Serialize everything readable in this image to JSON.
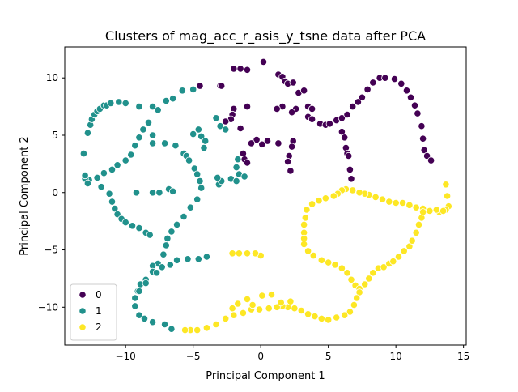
{
  "chart_data": {
    "type": "scatter",
    "title": "Clusters of mag_acc_r_asis_y_tsne data after PCA",
    "xlabel": "Principal Component 1",
    "ylabel": "Principal Component 2",
    "xlim": [
      -14.5,
      15.2
    ],
    "ylim": [
      -13.3,
      12.7
    ],
    "xticks": [
      -10,
      -5,
      0,
      5,
      10,
      15
    ],
    "yticks": [
      -10,
      -5,
      0,
      5,
      10
    ],
    "grid": false,
    "legend": {
      "placement": "lower-left",
      "entries": [
        "0",
        "1",
        "2"
      ]
    },
    "series": [
      {
        "name": "0",
        "color": "#440154",
        "points": [
          [
            -4.5,
            9.3
          ],
          [
            -3.0,
            9.3
          ],
          [
            -2.9,
            9.3
          ],
          [
            -2.0,
            10.8
          ],
          [
            -1.5,
            10.8
          ],
          [
            -1.0,
            10.7
          ],
          [
            0.2,
            11.4
          ],
          [
            1.3,
            10.3
          ],
          [
            1.6,
            10.1
          ],
          [
            1.8,
            9.7
          ],
          [
            2.0,
            9.5
          ],
          [
            2.4,
            9.6
          ],
          [
            2.8,
            8.7
          ],
          [
            3.2,
            8.9
          ],
          [
            3.5,
            7.5
          ],
          [
            2.6,
            7.3
          ],
          [
            2.3,
            7.0
          ],
          [
            1.6,
            7.5
          ],
          [
            1.2,
            7.3
          ],
          [
            -1.0,
            7.5
          ],
          [
            -2.0,
            7.3
          ],
          [
            -2.1,
            6.8
          ],
          [
            -2.2,
            6.4
          ],
          [
            -3.0,
            5.8
          ],
          [
            -2.6,
            6.2
          ],
          [
            -1.5,
            5.6
          ],
          [
            3.8,
            7.3
          ],
          [
            3.5,
            6.6
          ],
          [
            3.8,
            6.4
          ],
          [
            4.4,
            6.0
          ],
          [
            4.8,
            5.9
          ],
          [
            5.1,
            6.0
          ],
          [
            5.6,
            6.3
          ],
          [
            6.0,
            6.5
          ],
          [
            6.4,
            6.8
          ],
          [
            6.8,
            7.5
          ],
          [
            7.2,
            7.9
          ],
          [
            7.5,
            8.3
          ],
          [
            7.9,
            9.0
          ],
          [
            8.3,
            9.6
          ],
          [
            8.8,
            10.0
          ],
          [
            9.2,
            10.0
          ],
          [
            9.9,
            9.9
          ],
          [
            10.4,
            9.5
          ],
          [
            10.8,
            8.9
          ],
          [
            11.1,
            8.3
          ],
          [
            11.4,
            7.6
          ],
          [
            11.6,
            6.9
          ],
          [
            11.9,
            5.8
          ],
          [
            12.0,
            4.7
          ],
          [
            12.1,
            3.7
          ],
          [
            12.3,
            3.2
          ],
          [
            12.6,
            2.8
          ],
          [
            6.0,
            5.3
          ],
          [
            6.2,
            4.8
          ],
          [
            6.3,
            3.9
          ],
          [
            6.4,
            3.4
          ],
          [
            6.5,
            3.2
          ],
          [
            6.6,
            2.0
          ],
          [
            6.7,
            1.2
          ],
          [
            2.4,
            4.5
          ],
          [
            2.3,
            4.0
          ],
          [
            2.1,
            3.2
          ],
          [
            2.0,
            2.7
          ],
          [
            2.2,
            1.9
          ],
          [
            1.3,
            4.3
          ],
          [
            0.5,
            4.5
          ],
          [
            0.1,
            4.2
          ],
          [
            -0.3,
            4.6
          ],
          [
            -0.7,
            4.3
          ],
          [
            -1.3,
            3.4
          ],
          [
            -1.2,
            2.9
          ],
          [
            -1.0,
            2.6
          ]
        ]
      },
      {
        "name": "1",
        "color": "#21918c",
        "points": [
          [
            -12.8,
            5.2
          ],
          [
            -12.6,
            5.9
          ],
          [
            -12.5,
            6.4
          ],
          [
            -12.3,
            6.8
          ],
          [
            -12.1,
            7.1
          ],
          [
            -11.9,
            7.3
          ],
          [
            -11.6,
            7.6
          ],
          [
            -11.4,
            7.6
          ],
          [
            -11.1,
            7.8
          ],
          [
            -10.5,
            7.9
          ],
          [
            -10.0,
            7.8
          ],
          [
            -9.0,
            7.5
          ],
          [
            -8.0,
            7.5
          ],
          [
            -7.6,
            7.2
          ],
          [
            -7.0,
            8.0
          ],
          [
            -6.5,
            8.2
          ],
          [
            -5.8,
            8.9
          ],
          [
            -5.0,
            9.0
          ],
          [
            -8.3,
            6.1
          ],
          [
            -8.7,
            5.5
          ],
          [
            -9.0,
            4.8
          ],
          [
            -9.3,
            4.1
          ],
          [
            -9.6,
            3.3
          ],
          [
            -10.0,
            2.8
          ],
          [
            -10.6,
            2.4
          ],
          [
            -11.0,
            2.0
          ],
          [
            -11.6,
            1.7
          ],
          [
            -12.1,
            1.3
          ],
          [
            -12.7,
            1.1
          ],
          [
            -13.0,
            1.2
          ],
          [
            -13.1,
            3.4
          ],
          [
            -13.0,
            1.5
          ],
          [
            -12.8,
            0.8
          ],
          [
            -11.8,
            0.5
          ],
          [
            -11.2,
            -0.1
          ],
          [
            -11.0,
            -0.8
          ],
          [
            -10.8,
            -1.4
          ],
          [
            -10.6,
            -1.9
          ],
          [
            -10.3,
            -2.3
          ],
          [
            -10.0,
            -2.6
          ],
          [
            -9.5,
            -2.9
          ],
          [
            -9.0,
            -3.1
          ],
          [
            -8.5,
            -3.5
          ],
          [
            -8.2,
            -3.7
          ],
          [
            -9.2,
            0.0
          ],
          [
            -8.0,
            0.0
          ],
          [
            -7.5,
            0.0
          ],
          [
            -6.8,
            0.3
          ],
          [
            -6.5,
            0.1
          ],
          [
            -7.1,
            4.3
          ],
          [
            -8.0,
            4.3
          ],
          [
            -5.7,
            3.4
          ],
          [
            -5.5,
            3.2
          ],
          [
            -5.3,
            2.8
          ],
          [
            -4.9,
            2.1
          ],
          [
            -4.7,
            1.6
          ],
          [
            -4.5,
            1.0
          ],
          [
            -4.4,
            0.4
          ],
          [
            -4.7,
            -0.6
          ],
          [
            -5.2,
            -1.3
          ],
          [
            -5.7,
            -2.1
          ],
          [
            -6.2,
            -2.8
          ],
          [
            -6.6,
            -3.4
          ],
          [
            -6.9,
            -4.0
          ],
          [
            -7.0,
            -4.6
          ],
          [
            -7.2,
            -5.4
          ],
          [
            -7.6,
            -6.2
          ],
          [
            -8.0,
            -6.4
          ],
          [
            -8.0,
            -6.9
          ],
          [
            -8.5,
            -7.6
          ],
          [
            -8.9,
            -8.0
          ],
          [
            -9.1,
            -8.6
          ],
          [
            -9.3,
            -9.2
          ],
          [
            -9.3,
            -9.9
          ],
          [
            -9.0,
            -10.7
          ],
          [
            -8.6,
            -11.0
          ],
          [
            -8.0,
            -11.3
          ],
          [
            -7.1,
            -11.5
          ],
          [
            -6.6,
            -11.9
          ],
          [
            -4.2,
            3.9
          ],
          [
            -4.4,
            4.9
          ],
          [
            -4.6,
            5.5
          ],
          [
            -4.1,
            4.5
          ],
          [
            -3.3,
            6.5
          ],
          [
            -3.0,
            5.8
          ],
          [
            -2.6,
            5.5
          ],
          [
            -3.1,
            0.7
          ],
          [
            -2.9,
            1.0
          ],
          [
            -2.2,
            1.2
          ],
          [
            -1.8,
            1.0
          ],
          [
            -1.6,
            1.6
          ],
          [
            -1.2,
            1.4
          ],
          [
            -1.7,
            2.9
          ],
          [
            -1.8,
            2.2
          ],
          [
            -3.2,
            1.3
          ],
          [
            -4.0,
            -5.6
          ],
          [
            -4.6,
            -5.8
          ],
          [
            -5.4,
            -5.8
          ],
          [
            -6.2,
            -5.9
          ],
          [
            -6.7,
            -6.3
          ],
          [
            -7.3,
            -6.5
          ],
          [
            -7.7,
            -7.0
          ],
          [
            -8.5,
            -7.9
          ],
          [
            -9.0,
            -8.6
          ],
          [
            -8.0,
            5.0
          ],
          [
            -6.3,
            4.1
          ],
          [
            -5.0,
            5.1
          ]
        ]
      },
      {
        "name": "2",
        "color": "#fde725",
        "points": [
          [
            13.7,
            0.7
          ],
          [
            13.8,
            -0.3
          ],
          [
            13.9,
            -1.2
          ],
          [
            13.7,
            -1.5
          ],
          [
            13.2,
            -1.7
          ],
          [
            12.5,
            -1.6
          ],
          [
            12.0,
            -1.4
          ],
          [
            11.5,
            -1.3
          ],
          [
            11.0,
            -1.1
          ],
          [
            10.5,
            -0.9
          ],
          [
            10.0,
            -0.9
          ],
          [
            9.5,
            -0.8
          ],
          [
            9.0,
            -0.6
          ],
          [
            8.5,
            -0.4
          ],
          [
            8.0,
            -0.2
          ],
          [
            7.7,
            -0.1
          ],
          [
            7.3,
            0.0
          ],
          [
            6.8,
            0.2
          ],
          [
            6.3,
            0.3
          ],
          [
            6.0,
            0.2
          ],
          [
            5.7,
            -0.1
          ],
          [
            5.4,
            -0.3
          ],
          [
            4.8,
            -0.5
          ],
          [
            4.3,
            -0.7
          ],
          [
            3.8,
            -1.0
          ],
          [
            3.4,
            -1.5
          ],
          [
            3.3,
            -2.2
          ],
          [
            3.2,
            -2.8
          ],
          [
            3.2,
            -3.5
          ],
          [
            3.2,
            -4.0
          ],
          [
            3.2,
            -4.5
          ],
          [
            3.5,
            -5.1
          ],
          [
            3.9,
            -5.5
          ],
          [
            4.5,
            -5.9
          ],
          [
            5.0,
            -6.1
          ],
          [
            5.5,
            -6.3
          ],
          [
            6.0,
            -6.6
          ],
          [
            6.4,
            -7.0
          ],
          [
            6.7,
            -7.6
          ],
          [
            7.0,
            -8.1
          ],
          [
            7.3,
            -8.4
          ],
          [
            7.7,
            -8.0
          ],
          [
            8.0,
            -7.5
          ],
          [
            8.3,
            -7.0
          ],
          [
            8.7,
            -6.6
          ],
          [
            9.1,
            -6.5
          ],
          [
            9.5,
            -6.2
          ],
          [
            9.8,
            -6.0
          ],
          [
            10.2,
            -5.6
          ],
          [
            10.6,
            -5.1
          ],
          [
            11.0,
            -4.7
          ],
          [
            11.2,
            -4.2
          ],
          [
            11.5,
            -3.5
          ],
          [
            11.7,
            -2.8
          ],
          [
            11.9,
            -2.2
          ],
          [
            12.0,
            -1.7
          ],
          [
            7.3,
            -8.7
          ],
          [
            7.1,
            -9.2
          ],
          [
            6.9,
            -9.8
          ],
          [
            6.6,
            -10.4
          ],
          [
            6.2,
            -10.7
          ],
          [
            5.6,
            -10.9
          ],
          [
            5.0,
            -11.1
          ],
          [
            4.5,
            -11.0
          ],
          [
            4.0,
            -10.8
          ],
          [
            3.5,
            -10.6
          ],
          [
            3.0,
            -10.3
          ],
          [
            2.5,
            -10.1
          ],
          [
            2.0,
            -10.0
          ],
          [
            1.6,
            -9.9
          ],
          [
            1.2,
            -10.0
          ],
          [
            0.6,
            -10.1
          ],
          [
            -0.1,
            -10.2
          ],
          [
            -0.7,
            -10.2
          ],
          [
            -1.3,
            -10.5
          ],
          [
            -2.0,
            -10.7
          ],
          [
            -2.6,
            -11.0
          ],
          [
            -3.3,
            -11.5
          ],
          [
            -4.0,
            -11.8
          ],
          [
            -4.7,
            -12.0
          ],
          [
            -5.2,
            -12.0
          ],
          [
            -5.6,
            -12.0
          ],
          [
            0.1,
            -9.0
          ],
          [
            0.8,
            -8.9
          ],
          [
            1.5,
            -9.6
          ],
          [
            2.2,
            -9.5
          ],
          [
            -1.0,
            -9.3
          ],
          [
            -0.6,
            -9.8
          ],
          [
            -1.7,
            -9.7
          ],
          [
            -2.1,
            -10.1
          ],
          [
            0.0,
            -5.5
          ],
          [
            -0.4,
            -5.3
          ],
          [
            -1.0,
            -5.3
          ],
          [
            -1.6,
            -5.3
          ],
          [
            -2.1,
            -5.3
          ],
          [
            13.0,
            -1.5
          ],
          [
            13.5,
            -1.6
          ]
        ]
      }
    ]
  }
}
